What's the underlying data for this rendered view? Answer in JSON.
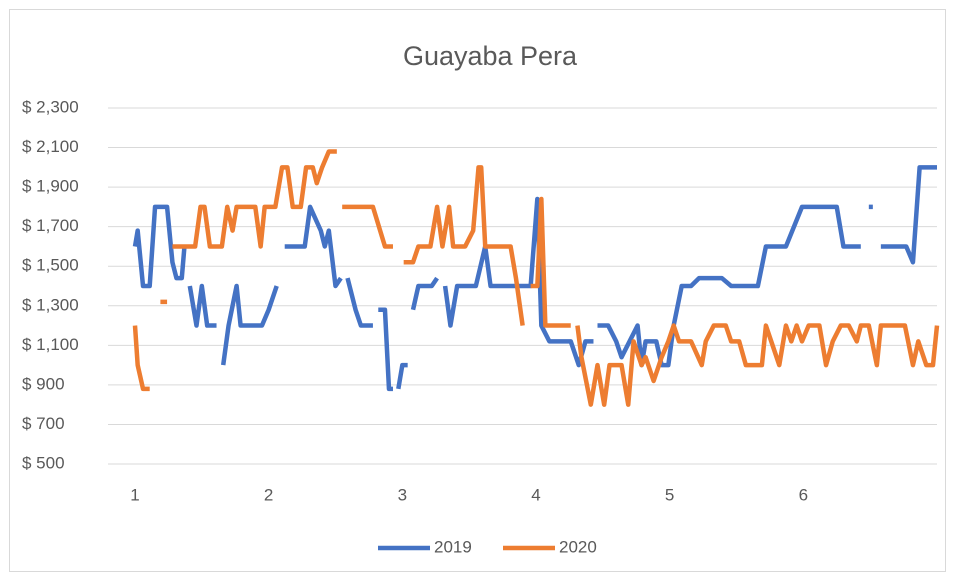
{
  "chart_data": {
    "type": "line",
    "title": "Guayaba Pera",
    "xlim": [
      1,
      7
    ],
    "xticks": [
      1,
      2,
      3,
      4,
      5,
      6
    ],
    "ylim": [
      500,
      2300
    ],
    "yticks": [
      {
        "value": 500,
        "label": "$ 500"
      },
      {
        "value": 700,
        "label": "$ 700"
      },
      {
        "value": 900,
        "label": "$ 900"
      },
      {
        "value": 1100,
        "label": "$ 1,100"
      },
      {
        "value": 1300,
        "label": "$ 1,300"
      },
      {
        "value": 1500,
        "label": "$ 1,500"
      },
      {
        "value": 1700,
        "label": "$ 1,700"
      },
      {
        "value": 1900,
        "label": "$ 1,900"
      },
      {
        "value": 2100,
        "label": "$ 2,100"
      },
      {
        "value": 2300,
        "label": "$ 2,300"
      }
    ],
    "grid": true,
    "legend": "bottom",
    "series": [
      {
        "name": "2019",
        "color": "#4472c4",
        "x": [
          1.0,
          1.02,
          1.06,
          1.11,
          1.15,
          1.24,
          1.28,
          1.31,
          1.35,
          1.37,
          1.38,
          1.41,
          1.46,
          1.5,
          1.54,
          1.61,
          1.62,
          1.66,
          1.7,
          1.76,
          1.79,
          1.95,
          2.0,
          2.06,
          2.1,
          2.12,
          2.27,
          2.31,
          2.39,
          2.42,
          2.45,
          2.5,
          2.54,
          2.56,
          2.59,
          2.65,
          2.69,
          2.78,
          2.8,
          2.82,
          2.87,
          2.9,
          2.93,
          2.95,
          2.97,
          3.0,
          3.04,
          3.07,
          3.08,
          3.12,
          3.22,
          3.26,
          3.28,
          3.32,
          3.36,
          3.41,
          3.55,
          3.62,
          3.66,
          3.96,
          4.01,
          4.04,
          4.1,
          4.2,
          4.26,
          4.32,
          4.37,
          4.43,
          4.45,
          4.46,
          4.54,
          4.6,
          4.64,
          4.76,
          4.79,
          4.82,
          4.9,
          4.94,
          4.99,
          5.03,
          5.09,
          5.16,
          5.22,
          5.39,
          5.46,
          5.66,
          5.72,
          5.87,
          5.99,
          6.25,
          6.3,
          6.43,
          6.46,
          6.49,
          6.52,
          6.55,
          6.58,
          6.77,
          6.82,
          6.87,
          7.0
        ],
        "values": [
          1600,
          1680,
          1400,
          1400,
          1800,
          1800,
          1520,
          1440,
          1440,
          1600,
          null,
          1400,
          1200,
          1400,
          1200,
          1200,
          null,
          1000,
          1200,
          1400,
          1200,
          1200,
          1280,
          1400,
          null,
          1600,
          1600,
          1800,
          1680,
          1600,
          1680,
          1400,
          1440,
          null,
          1440,
          1280,
          1200,
          1200,
          null,
          1280,
          1280,
          880,
          880,
          null,
          880,
          1000,
          1000,
          null,
          1280,
          1400,
          1400,
          1440,
          null,
          1400,
          1200,
          1400,
          1400,
          1600,
          1400,
          1400,
          1840,
          1200,
          1120,
          1120,
          1120,
          1000,
          1120,
          1120,
          null,
          1200,
          1200,
          1120,
          1040,
          1200,
          1000,
          1120,
          1120,
          1000,
          1000,
          1200,
          1400,
          1400,
          1440,
          1440,
          1400,
          1400,
          1600,
          1600,
          1800,
          1800,
          1600,
          1600,
          null,
          1800,
          1800,
          null,
          1600,
          1600,
          1520,
          2000,
          2000
        ]
      },
      {
        "name": "2020",
        "color": "#ed7d31",
        "x": [
          1.0,
          1.02,
          1.06,
          1.11,
          1.13,
          1.19,
          1.24,
          1.26,
          1.28,
          1.45,
          1.49,
          1.52,
          1.56,
          1.65,
          1.69,
          1.73,
          1.76,
          1.9,
          1.94,
          1.97,
          2.05,
          2.1,
          2.14,
          2.18,
          2.24,
          2.28,
          2.33,
          2.36,
          2.4,
          2.45,
          2.51,
          2.53,
          2.55,
          2.78,
          2.87,
          2.93,
          2.96,
          3.01,
          3.08,
          3.12,
          3.21,
          3.26,
          3.3,
          3.35,
          3.38,
          3.47,
          3.53,
          3.57,
          3.59,
          3.62,
          3.81,
          3.85,
          3.9,
          3.92,
          3.96,
          4.01,
          4.04,
          4.07,
          4.26,
          4.28,
          4.31,
          4.34,
          4.41,
          4.46,
          4.51,
          4.55,
          4.64,
          4.69,
          4.73,
          4.79,
          4.82,
          4.88,
          4.94,
          4.99,
          5.03,
          5.07,
          5.16,
          5.24,
          5.27,
          5.33,
          5.42,
          5.46,
          5.52,
          5.57,
          5.69,
          5.72,
          5.76,
          5.82,
          5.87,
          5.91,
          5.95,
          5.99,
          6.04,
          6.12,
          6.17,
          6.22,
          6.28,
          6.34,
          6.4,
          6.43,
          6.49,
          6.55,
          6.58,
          6.76,
          6.82,
          6.86,
          6.92,
          6.97,
          7.0
        ],
        "values": [
          1200,
          1000,
          880,
          880,
          null,
          1320,
          1320,
          null,
          1600,
          1600,
          1800,
          1800,
          1600,
          1600,
          1800,
          1680,
          1800,
          1800,
          1600,
          1800,
          1800,
          2000,
          2000,
          1800,
          1800,
          2000,
          2000,
          1920,
          2000,
          2080,
          2080,
          null,
          1800,
          1800,
          1600,
          1600,
          null,
          1520,
          1520,
          1600,
          1600,
          1800,
          1600,
          1800,
          1600,
          1600,
          1680,
          2000,
          2000,
          1600,
          1600,
          1440,
          1200,
          null,
          1400,
          1400,
          1840,
          1200,
          1200,
          null,
          1200,
          1040,
          800,
          1000,
          800,
          1000,
          1000,
          800,
          1120,
          1000,
          1040,
          920,
          1040,
          1120,
          1200,
          1120,
          1120,
          1000,
          1120,
          1200,
          1200,
          1120,
          1120,
          1000,
          1000,
          1200,
          1120,
          1000,
          1200,
          1120,
          1200,
          1120,
          1200,
          1200,
          1000,
          1120,
          1200,
          1200,
          1120,
          1200,
          1200,
          1000,
          1200,
          1200,
          1000,
          1120,
          1000,
          1000,
          1200
        ]
      }
    ]
  }
}
